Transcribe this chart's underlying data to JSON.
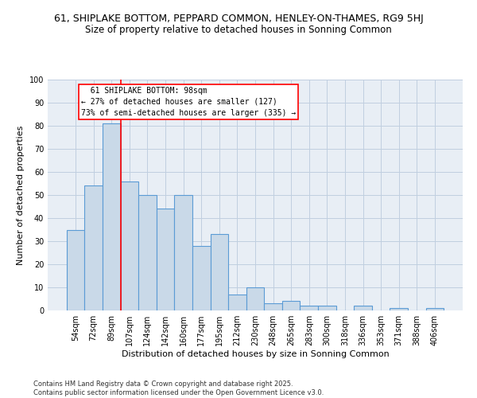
{
  "title_line1": "61, SHIPLAKE BOTTOM, PEPPARD COMMON, HENLEY-ON-THAMES, RG9 5HJ",
  "title_line2": "Size of property relative to detached houses in Sonning Common",
  "xlabel": "Distribution of detached houses by size in Sonning Common",
  "ylabel": "Number of detached properties",
  "categories": [
    "54sqm",
    "72sqm",
    "89sqm",
    "107sqm",
    "124sqm",
    "142sqm",
    "160sqm",
    "177sqm",
    "195sqm",
    "212sqm",
    "230sqm",
    "248sqm",
    "265sqm",
    "283sqm",
    "300sqm",
    "318sqm",
    "336sqm",
    "353sqm",
    "371sqm",
    "388sqm",
    "406sqm"
  ],
  "values": [
    35,
    54,
    81,
    56,
    50,
    44,
    50,
    28,
    33,
    7,
    10,
    3,
    4,
    2,
    2,
    0,
    2,
    0,
    1,
    0,
    1
  ],
  "bar_color": "#c9d9e8",
  "bar_edge_color": "#5b9bd5",
  "bar_edge_width": 0.8,
  "grid_color": "#c0cfe0",
  "bg_color": "#e8eef5",
  "red_line_x": 2.5,
  "annotation_box_text": "  61 SHIPLAKE BOTTOM: 98sqm\n← 27% of detached houses are smaller (127)\n73% of semi-detached houses are larger (335) →",
  "ylim": [
    0,
    100
  ],
  "yticks": [
    0,
    10,
    20,
    30,
    40,
    50,
    60,
    70,
    80,
    90,
    100
  ],
  "footnote": "Contains HM Land Registry data © Crown copyright and database right 2025.\nContains public sector information licensed under the Open Government Licence v3.0.",
  "title_fontsize": 9,
  "subtitle_fontsize": 8.5,
  "axis_label_fontsize": 8,
  "tick_fontsize": 7,
  "annotation_fontsize": 7,
  "footnote_fontsize": 6
}
